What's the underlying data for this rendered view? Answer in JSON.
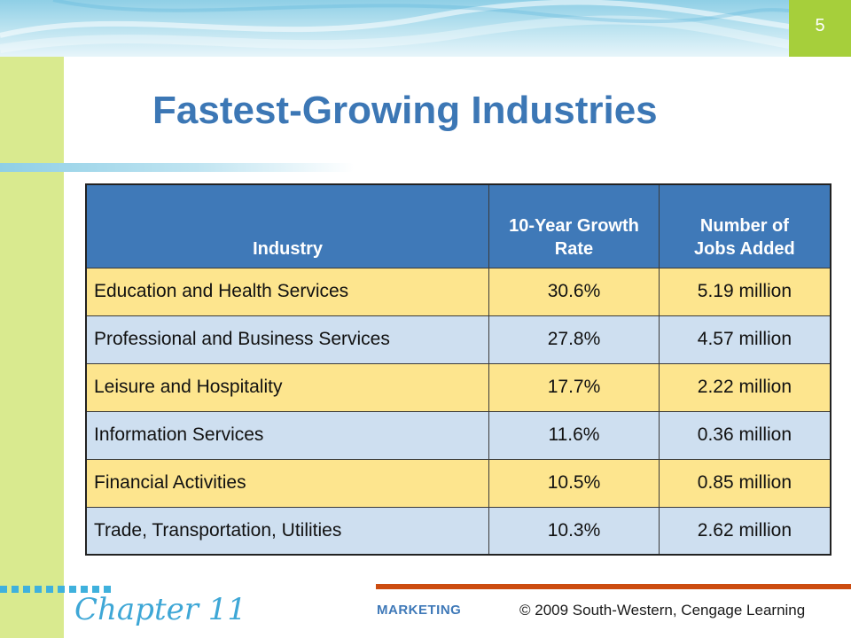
{
  "slide": {
    "number": "5",
    "title": "Fastest-Growing Industries"
  },
  "table": {
    "headers": {
      "industry": "Industry",
      "growth": "10-Year Growth Rate",
      "jobs": "Number of Jobs Added"
    },
    "rows": [
      {
        "industry": "Education and Health Services",
        "growth": "30.6%",
        "jobs": "5.19 million"
      },
      {
        "industry": "Professional and Business Services",
        "growth": "27.8%",
        "jobs": "4.57 million"
      },
      {
        "industry": "Leisure and Hospitality",
        "growth": "17.7%",
        "jobs": "2.22 million"
      },
      {
        "industry": "Information Services",
        "growth": "11.6%",
        "jobs": "0.36 million"
      },
      {
        "industry": "Financial Activities",
        "growth": "10.5%",
        "jobs": "0.85 million"
      },
      {
        "industry": "Trade, Transportation, Utilities",
        "growth": "10.3%",
        "jobs": "2.62 million"
      }
    ]
  },
  "footer": {
    "chapter": "Chapter 11",
    "brand": "MARKETING",
    "copyright": "© 2009 South-Western, Cengage Learning"
  },
  "colors": {
    "header_blue": "#3f79b8",
    "row_yellow": "#fde58e",
    "row_blue": "#cedff0",
    "accent_green": "#a6cf3b",
    "accent_orange": "#cc4c10"
  }
}
